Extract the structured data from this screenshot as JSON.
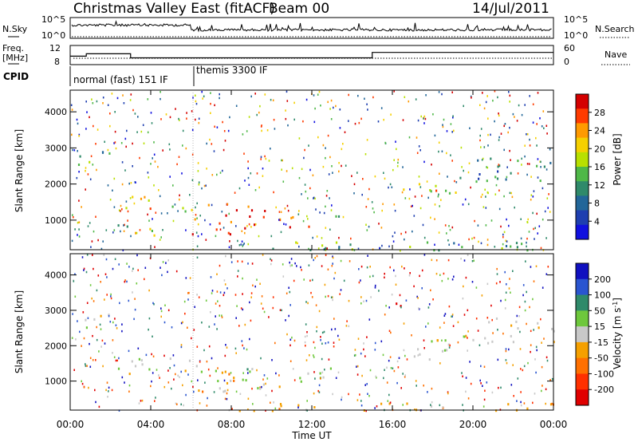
{
  "header": {
    "title": "Christmas Valley East (fitACF)",
    "beam": "Beam 00",
    "date": "14/Jul/2011"
  },
  "top_panels": {
    "nsky_label": "N.Sky",
    "nsky_ticks": [
      "10^5",
      "10^0"
    ],
    "nsearch_label": "N.Search",
    "nsearch_ticks": [
      "10^5",
      "10^0"
    ],
    "freq_label": "Freq.",
    "freq_unit": "[MHz]",
    "freq_ticks": [
      "12",
      "8"
    ],
    "nave_label": "Nave",
    "nave_ticks": [
      "60",
      "0"
    ],
    "cpid_label": "CPID",
    "cpid_segments": [
      {
        "label": "normal (fast) 151 IF",
        "start_hour": 0,
        "end_hour": 6.1
      },
      {
        "label": "themis 3300 IF",
        "start_hour": 6.1,
        "end_hour": 24
      }
    ],
    "freq_steps": [
      {
        "start_hour": 0,
        "end_hour": 0.8,
        "mhz": 10.5
      },
      {
        "start_hour": 0.8,
        "end_hour": 3.0,
        "mhz": 11.2
      },
      {
        "start_hour": 3.0,
        "end_hour": 6.1,
        "mhz": 10.0
      },
      {
        "start_hour": 6.1,
        "end_hour": 15.0,
        "mhz": 10.0
      },
      {
        "start_hour": 15.0,
        "end_hour": 24,
        "mhz": 11.6
      }
    ]
  },
  "chart_data": [
    {
      "type": "heatmap",
      "name": "Power",
      "ylabel": "Slant Range [km]",
      "yticks": [
        1000,
        2000,
        3000,
        4000
      ],
      "ylim": [
        180,
        4600
      ],
      "xlim": [
        0,
        24
      ],
      "colorbar": {
        "label": "Power [dB]",
        "ticks": [
          "28",
          "24",
          "20",
          "16",
          "12",
          "8",
          "4"
        ],
        "colors": [
          "#d40000",
          "#ff3b00",
          "#ff9a00",
          "#f5d000",
          "#b8e000",
          "#4fb848",
          "#2f8a6a",
          "#226699",
          "#1e3fb0",
          "#1010e0"
        ]
      },
      "bands": [
        {
          "t0": 0.0,
          "t1": 2.0,
          "r0": 2500,
          "r1": 2950,
          "level": 0.35
        },
        {
          "t0": 2.0,
          "t1": 4.5,
          "r0": 1300,
          "r1": 1700,
          "level": 0.75
        },
        {
          "t0": 2.0,
          "t1": 4.0,
          "r0": 850,
          "r1": 1050,
          "level": 0.45
        },
        {
          "t0": 4.5,
          "t1": 6.5,
          "r0": 1200,
          "r1": 1600,
          "level": 0.6
        },
        {
          "t0": 6.0,
          "t1": 9.0,
          "r0": 600,
          "r1": 1500,
          "level": 0.85
        },
        {
          "t0": 9.0,
          "t1": 12.0,
          "r0": 800,
          "r1": 1300,
          "level": 0.8
        },
        {
          "t0": 12.0,
          "t1": 13.8,
          "r0": 1000,
          "r1": 1200,
          "level": 0.5
        },
        {
          "t0": 2.5,
          "t1": 6.0,
          "r0": 600,
          "r1": 800,
          "level": 0.6
        },
        {
          "t0": 16.5,
          "t1": 19.0,
          "r0": 1600,
          "r1": 2100,
          "level": 0.55
        },
        {
          "t0": 17.5,
          "t1": 19.2,
          "r0": 1650,
          "r1": 1900,
          "level": 0.8
        },
        {
          "t0": 19.0,
          "t1": 24.0,
          "r0": 2100,
          "r1": 2800,
          "level": 0.3
        },
        {
          "t0": 6.0,
          "t1": 24.0,
          "r0": 180,
          "r1": 420,
          "level": 0.4
        }
      ]
    },
    {
      "type": "heatmap",
      "name": "Velocity",
      "ylabel": "Slant Range [km]",
      "yticks": [
        1000,
        2000,
        3000,
        4000
      ],
      "ylim": [
        180,
        4600
      ],
      "xlim": [
        0,
        24
      ],
      "xlabel": "Time UT",
      "xticks": [
        "00:00",
        "04:00",
        "08:00",
        "12:00",
        "16:00",
        "20:00",
        "00:00"
      ],
      "colorbar": {
        "label": "Velocity [m s^-1]",
        "ticks": [
          "200",
          "100",
          "50",
          "15",
          "-15",
          "-50",
          "-100",
          "-200"
        ],
        "colors": [
          "#1010c0",
          "#2a55d0",
          "#2f8a6a",
          "#6ec83c",
          "#c8c8c8",
          "#f5a000",
          "#ff7000",
          "#ff3000",
          "#e00000"
        ]
      },
      "bands": [
        {
          "t0": 0.0,
          "t1": 2.0,
          "r0": 2500,
          "r1": 2950,
          "level": 4
        },
        {
          "t0": 2.0,
          "t1": 6.5,
          "r0": 1200,
          "r1": 1700,
          "level": 4
        },
        {
          "t0": 6.2,
          "t1": 9.0,
          "r0": 500,
          "r1": 1300,
          "level": 5
        },
        {
          "t0": 7.0,
          "t1": 13.5,
          "r0": 1000,
          "r1": 1400,
          "level": 3
        },
        {
          "t0": 9.0,
          "t1": 12.0,
          "r0": 700,
          "r1": 1000,
          "level": 4
        },
        {
          "t0": 16.5,
          "t1": 19.5,
          "r0": 1500,
          "r1": 2200,
          "level": 4
        },
        {
          "t0": 19.5,
          "t1": 24.0,
          "r0": 2100,
          "r1": 2800,
          "level": 4
        },
        {
          "t0": 16.0,
          "t1": 17.0,
          "r0": 3000,
          "r1": 3400,
          "level": 8
        },
        {
          "t0": 6.0,
          "t1": 24.0,
          "r0": 180,
          "r1": 400,
          "level": 5
        }
      ]
    }
  ]
}
